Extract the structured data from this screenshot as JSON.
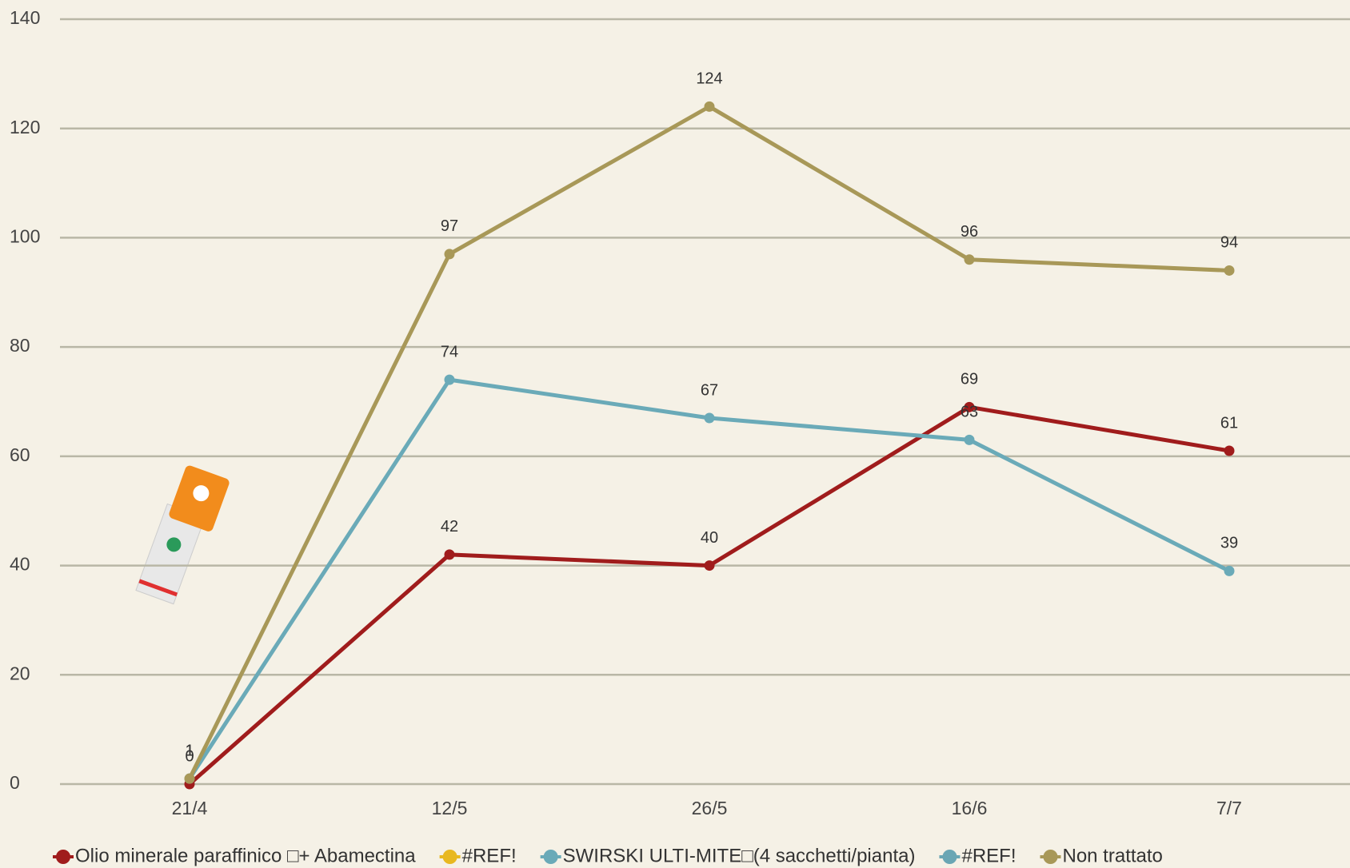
{
  "chart_data": {
    "type": "line",
    "categories": [
      "21/4",
      "12/5",
      "26/5",
      "16/6",
      "7/7"
    ],
    "series": [
      {
        "name": "Olio minerale paraffinico □+ Abamectina",
        "color": "#a01c1c",
        "values": [
          0,
          42,
          40,
          69,
          61
        ]
      },
      {
        "name": "#REF!",
        "color": "#e8b820",
        "values": [
          null,
          null,
          null,
          null,
          null
        ]
      },
      {
        "name": "SWIRSKI ULTI-MITE□(4 sacchetti/pianta)",
        "color": "#6aaab8",
        "values": [
          1,
          74,
          67,
          63,
          39
        ]
      },
      {
        "name": "#REF!",
        "color": "#6aa6b4",
        "values": [
          null,
          null,
          null,
          null,
          null
        ]
      },
      {
        "name": "Non trattato",
        "color": "#a89858",
        "values": [
          1,
          97,
          124,
          96,
          94
        ]
      }
    ],
    "ylim": [
      0,
      140
    ],
    "yticks": [
      0,
      20,
      40,
      60,
      80,
      100,
      120,
      140
    ],
    "grid": true,
    "legend": "bottom"
  }
}
